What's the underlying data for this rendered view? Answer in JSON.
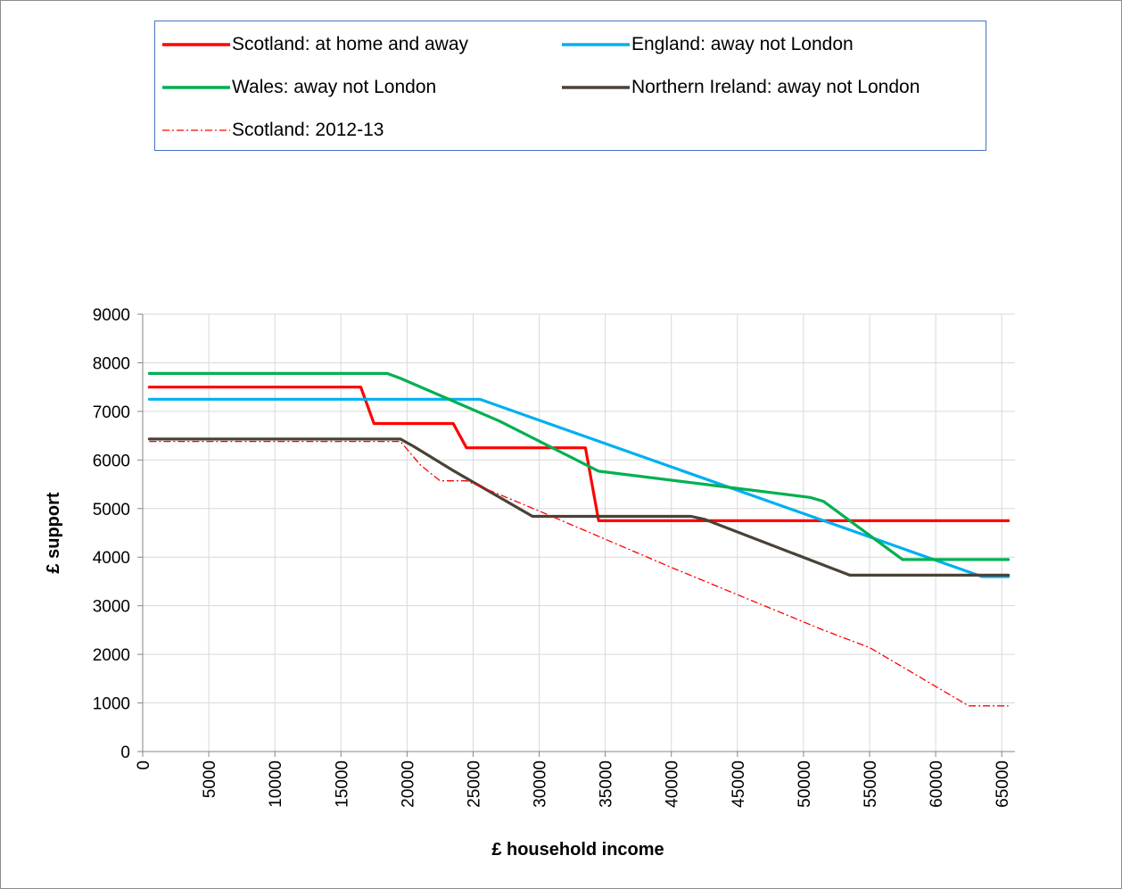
{
  "chart_data": {
    "type": "line",
    "xlabel": "£ household income",
    "ylabel": "£ support",
    "xlim": [
      0,
      66000
    ],
    "ylim": [
      0,
      9000
    ],
    "x_ticks": [
      0,
      5000,
      10000,
      15000,
      20000,
      25000,
      30000,
      35000,
      40000,
      45000,
      50000,
      55000,
      60000,
      65000
    ],
    "y_ticks": [
      0,
      1000,
      2000,
      3000,
      4000,
      5000,
      6000,
      7000,
      8000,
      9000
    ],
    "grid": true,
    "legend_position": "top",
    "series": [
      {
        "name": "Scotland: at home and away",
        "color": "#ff0000",
        "style": "solid",
        "x": [
          500,
          16500,
          17500,
          23500,
          24500,
          33500,
          34500,
          65500
        ],
        "y": [
          7500,
          7500,
          6750,
          6750,
          6250,
          6250,
          4750,
          4750
        ]
      },
      {
        "name": "England: away not London",
        "color": "#00b0f0",
        "style": "solid",
        "x": [
          500,
          25500,
          63500,
          65500
        ],
        "y": [
          7250,
          7250,
          3600,
          3600
        ]
      },
      {
        "name": "Wales: away not London",
        "color": "#00b050",
        "style": "solid",
        "x": [
          500,
          18500,
          19500,
          27000,
          34500,
          50500,
          51500,
          57500,
          65500
        ],
        "y": [
          7780,
          7780,
          7680,
          6800,
          5770,
          5230,
          5150,
          3950,
          3950
        ]
      },
      {
        "name": "Northern Ireland: away not London",
        "color": "#4a4235",
        "style": "solid",
        "x": [
          500,
          19500,
          20500,
          23500,
          29500,
          41500,
          42500,
          53500,
          65500
        ],
        "y": [
          6430,
          6430,
          6280,
          5780,
          4840,
          4840,
          4780,
          3630,
          3630
        ]
      },
      {
        "name": "Scotland: 2012-13",
        "color": "#ff0000",
        "style": "dashdot",
        "x": [
          500,
          19500,
          21000,
          22500,
          24500,
          30000,
          40000,
          51500,
          55000,
          62500,
          65500
        ],
        "y": [
          6380,
          6380,
          5900,
          5570,
          5570,
          4950,
          3790,
          2500,
          2140,
          940,
          940
        ]
      }
    ]
  }
}
